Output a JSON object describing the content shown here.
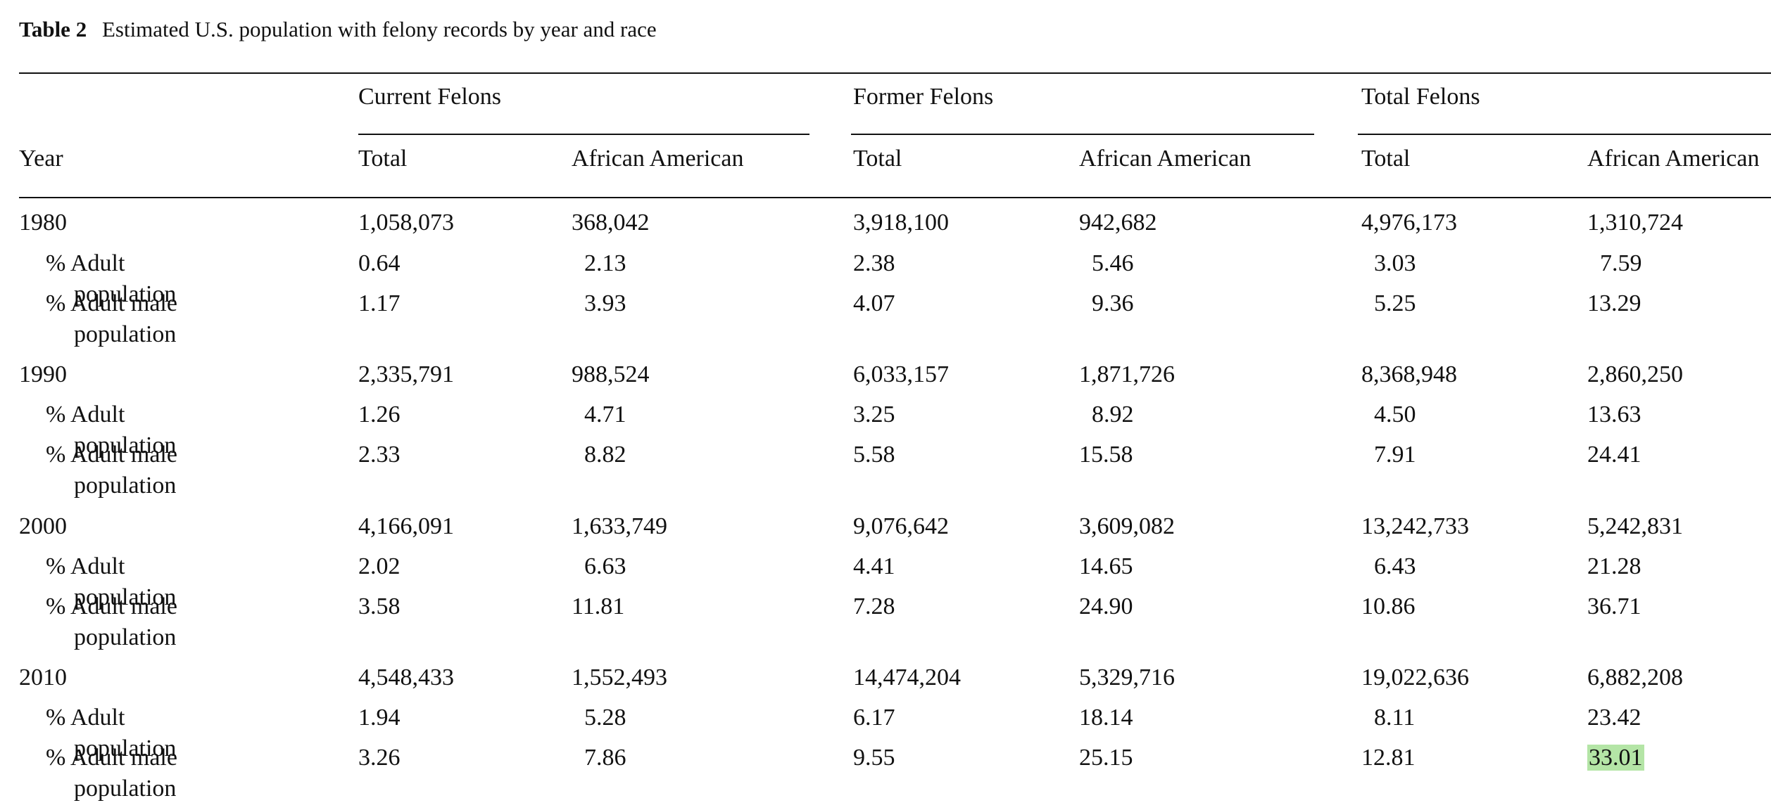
{
  "caption": {
    "label": "Table 2",
    "text": "Estimated U.S. population with felony records by year and race"
  },
  "header": {
    "year": "Year",
    "groups": [
      "Current Felons",
      "Former Felons",
      "Total Felons"
    ],
    "subheaders": [
      "Total",
      "African American",
      "Total",
      "African American",
      "Total",
      "African American"
    ]
  },
  "rows": [
    {
      "label": "1980",
      "values": [
        "1,058,073",
        "368,042",
        "3,918,100",
        "942,682",
        "4,976,173",
        "1,310,724"
      ]
    },
    {
      "label": "% Adult population",
      "values": [
        "0.64",
        "2.13",
        "2.38",
        "5.46",
        "3.03",
        "7.59"
      ]
    },
    {
      "label": "% Adult male population",
      "values": [
        "1.17",
        "3.93",
        "4.07",
        "9.36",
        "5.25",
        "13.29"
      ]
    },
    {
      "label": "1990",
      "values": [
        "2,335,791",
        "988,524",
        "6,033,157",
        "1,871,726",
        "8,368,948",
        "2,860,250"
      ]
    },
    {
      "label": "% Adult population",
      "values": [
        "1.26",
        "4.71",
        "3.25",
        "8.92",
        "4.50",
        "13.63"
      ]
    },
    {
      "label": "% Adult male population",
      "values": [
        "2.33",
        "8.82",
        "5.58",
        "15.58",
        "7.91",
        "24.41"
      ]
    },
    {
      "label": "2000",
      "values": [
        "4,166,091",
        "1,633,749",
        "9,076,642",
        "3,609,082",
        "13,242,733",
        "5,242,831"
      ]
    },
    {
      "label": "% Adult population",
      "values": [
        "2.02",
        "6.63",
        "4.41",
        "14.65",
        "6.43",
        "21.28"
      ]
    },
    {
      "label": "% Adult male population",
      "values": [
        "3.58",
        "11.81",
        "7.28",
        "24.90",
        "10.86",
        "36.71"
      ]
    },
    {
      "label": "2010",
      "values": [
        "4,548,433",
        "1,552,493",
        "14,474,204",
        "5,329,716",
        "19,022,636",
        "6,882,208"
      ]
    },
    {
      "label": "% Adult population",
      "values": [
        "1.94",
        "5.28",
        "6.17",
        "18.14",
        "8.11",
        "23.42"
      ]
    },
    {
      "label": "% Adult male population",
      "values": [
        "3.26",
        "7.86",
        "9.55",
        "25.15",
        "12.81",
        "33.01"
      ]
    }
  ],
  "highlight_color": "#b4e5a6"
}
